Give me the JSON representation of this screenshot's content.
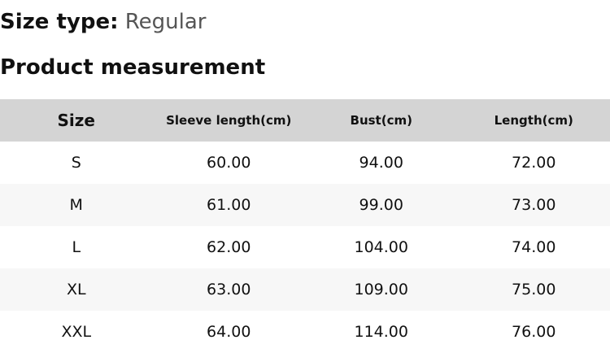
{
  "size_type": {
    "label": "Size type:",
    "value": "Regular"
  },
  "section_title": "Product measurement",
  "table": {
    "headers": [
      "Size",
      "Sleeve length(cm)",
      "Bust(cm)",
      "Length(cm)"
    ],
    "rows": [
      [
        "S",
        "60.00",
        "94.00",
        "72.00"
      ],
      [
        "M",
        "61.00",
        "99.00",
        "73.00"
      ],
      [
        "L",
        "62.00",
        "104.00",
        "74.00"
      ],
      [
        "XL",
        "63.00",
        "109.00",
        "75.00"
      ],
      [
        "XXL",
        "64.00",
        "114.00",
        "76.00"
      ]
    ]
  },
  "colors": {
    "header_bg": "#d4d4d4",
    "stripe_bg": "#f7f7f7",
    "value_text": "#555555"
  }
}
